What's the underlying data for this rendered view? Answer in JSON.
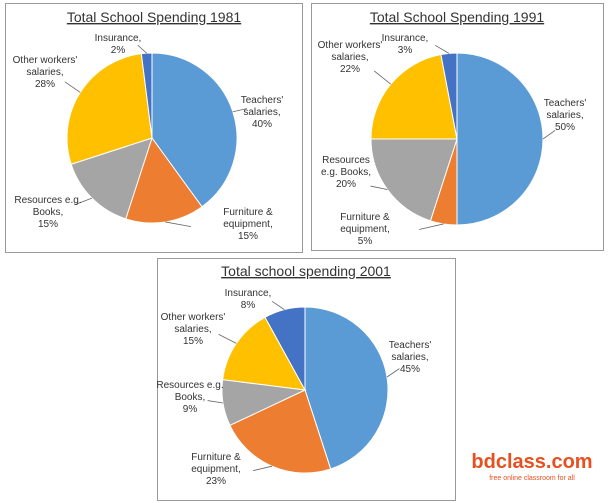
{
  "chart_data": [
    {
      "type": "pie",
      "title": "Total School Spending 1981",
      "categories": [
        "Teachers' salaries,",
        "Furniture & equipment,",
        "Resources e.g. Books,",
        "Other workers' salaries,",
        "Insurance,"
      ],
      "values": [
        40,
        15,
        15,
        28,
        2
      ],
      "value_labels": [
        "40%",
        "15%",
        "15%",
        "28%",
        "2%"
      ],
      "colors": [
        "#5b9bd5",
        "#ed7d31",
        "#a5a5a5",
        "#ffc000",
        "#4472c4"
      ]
    },
    {
      "type": "pie",
      "title": "Total School Spending 1991",
      "categories": [
        "Teachers' salaries,",
        "Furniture & equipment,",
        "Resources e.g. Books,",
        "Other workers' salaries,",
        "Insurance,"
      ],
      "values": [
        50,
        5,
        20,
        22,
        3
      ],
      "value_labels": [
        "50%",
        "5%",
        "20%",
        "22%",
        "3%"
      ],
      "colors": [
        "#5b9bd5",
        "#ed7d31",
        "#a5a5a5",
        "#ffc000",
        "#4472c4"
      ]
    },
    {
      "type": "pie",
      "title": "Total school spending 2001",
      "categories": [
        "Teachers' salaries,",
        "Furniture & equipment,",
        "Resources e.g. Books,",
        "Other workers' salaries,",
        "Insurance,"
      ],
      "values": [
        45,
        23,
        9,
        15,
        8
      ],
      "value_labels": [
        "45%",
        "23%",
        "9%",
        "15%",
        "8%"
      ],
      "colors": [
        "#5b9bd5",
        "#ed7d31",
        "#a5a5a5",
        "#ffc000",
        "#4472c4"
      ]
    }
  ],
  "watermark": {
    "brand": "bdclass.com",
    "tagline": "free online classroom for all"
  }
}
